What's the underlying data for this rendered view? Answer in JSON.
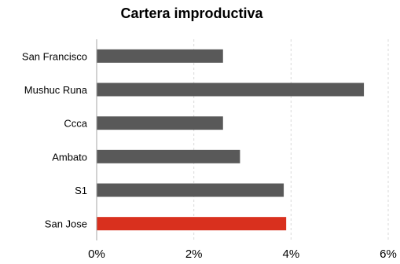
{
  "chart_data": {
    "type": "bar",
    "orientation": "horizontal",
    "title": "Cartera improductiva",
    "xlabel": "",
    "ylabel": "",
    "categories": [
      "San Francisco",
      "Mushuc Runa",
      "Ccca",
      "Ambato",
      "S1",
      "San Jose"
    ],
    "values": [
      2.6,
      5.5,
      2.6,
      2.95,
      3.85,
      3.9
    ],
    "colors": [
      "#595959",
      "#595959",
      "#595959",
      "#595959",
      "#595959",
      "#d9301e"
    ],
    "xlim": [
      0,
      6
    ],
    "ticks": [
      0,
      2,
      4,
      6
    ],
    "tick_labels": [
      "0%",
      "2%",
      "4%",
      "6%"
    ],
    "grid": "vertical dashed",
    "legend": "none"
  }
}
